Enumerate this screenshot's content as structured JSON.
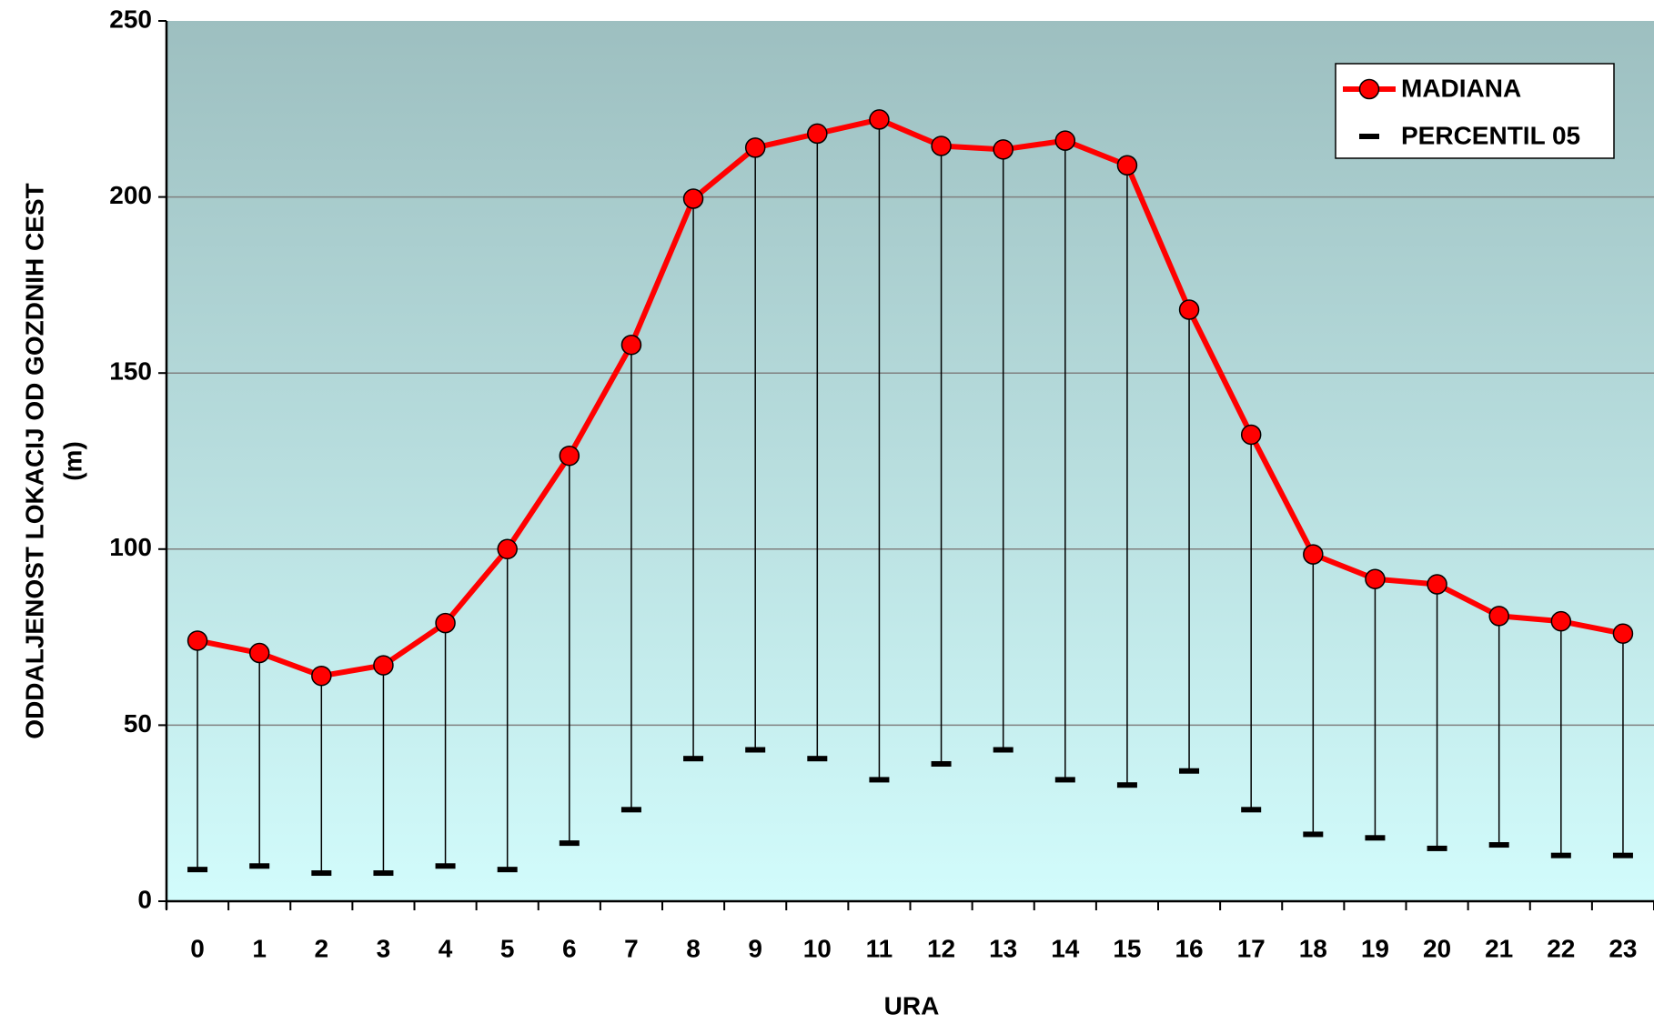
{
  "chart_data": {
    "type": "line",
    "xlabel": "URA",
    "ylabel": [
      "ODDALJENOST LOKACIJ OD GOZDNIH CEST",
      "(m)"
    ],
    "categories": [
      "0",
      "1",
      "2",
      "3",
      "4",
      "5",
      "6",
      "7",
      "8",
      "9",
      "10",
      "11",
      "12",
      "13",
      "14",
      "15",
      "16",
      "17",
      "18",
      "19",
      "20",
      "21",
      "22",
      "23"
    ],
    "series": [
      {
        "name": "MADIANA",
        "color": "#ff0000",
        "marker": "circle",
        "values": [
          74,
          70.5,
          64,
          67,
          79,
          100,
          126.5,
          158,
          199.5,
          214,
          218,
          222,
          214.5,
          213.5,
          216,
          209,
          168,
          132.5,
          98.5,
          91.5,
          90,
          81,
          79.5,
          76
        ]
      },
      {
        "name": "PERCENTIL 05",
        "color": "#000000",
        "marker": "dash",
        "values": [
          9,
          10,
          8,
          8,
          10,
          9,
          16.5,
          26,
          40.5,
          43,
          40.5,
          34.5,
          39,
          43,
          34.5,
          33,
          37,
          26,
          19,
          18,
          15,
          16,
          13,
          13
        ]
      }
    ],
    "ylim": [
      0,
      250
    ],
    "yticks": [
      0,
      50,
      100,
      150,
      200,
      250
    ],
    "grid": true,
    "legend": "upper right"
  }
}
